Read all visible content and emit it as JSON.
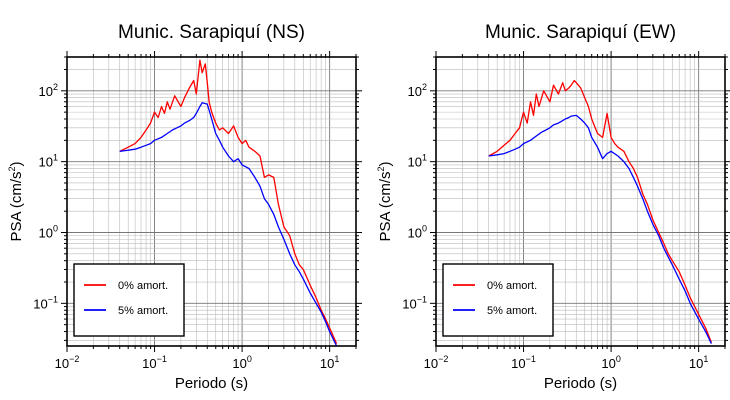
{
  "chart_data": [
    {
      "type": "line",
      "title": "Munic. Sarapiquí (NS)",
      "xlabel": "Periodo (s)",
      "ylabel_main": "PSA (cm/s",
      "ylabel_exp": "2",
      "ylabel_close": ")",
      "xscale": "log",
      "yscale": "log",
      "xlim": [
        0.01,
        20
      ],
      "ylim": [
        0.025,
        300
      ],
      "grid": true,
      "legend_position": "bottom-left",
      "series": [
        {
          "name": "0% amort.",
          "color": "#ff0000",
          "x": [
            0.04,
            0.05,
            0.06,
            0.07,
            0.08,
            0.09,
            0.1,
            0.11,
            0.12,
            0.13,
            0.14,
            0.15,
            0.17,
            0.2,
            0.22,
            0.25,
            0.28,
            0.3,
            0.33,
            0.35,
            0.38,
            0.4,
            0.42,
            0.45,
            0.5,
            0.55,
            0.6,
            0.7,
            0.8,
            0.9,
            1.0,
            1.1,
            1.2,
            1.4,
            1.6,
            1.8,
            2.0,
            2.3,
            2.6,
            3.0,
            3.5,
            4.0,
            4.5,
            5.0,
            6.0,
            7.0,
            8.0,
            9.0,
            10.0,
            12.0
          ],
          "y": [
            14,
            16,
            18,
            22,
            28,
            35,
            50,
            42,
            60,
            48,
            70,
            55,
            85,
            60,
            80,
            110,
            140,
            90,
            270,
            180,
            240,
            130,
            70,
            50,
            35,
            28,
            30,
            25,
            32,
            22,
            18,
            20,
            16,
            14,
            12,
            6,
            6.5,
            6,
            2.5,
            1.2,
            0.9,
            0.5,
            0.35,
            0.3,
            0.18,
            0.12,
            0.08,
            0.06,
            0.045,
            0.027
          ]
        },
        {
          "name": "5% amort.",
          "color": "#0000ff",
          "x": [
            0.04,
            0.05,
            0.06,
            0.07,
            0.08,
            0.09,
            0.1,
            0.12,
            0.14,
            0.16,
            0.18,
            0.2,
            0.22,
            0.25,
            0.28,
            0.3,
            0.33,
            0.35,
            0.4,
            0.45,
            0.5,
            0.55,
            0.6,
            0.7,
            0.8,
            0.9,
            1.0,
            1.2,
            1.4,
            1.6,
            1.8,
            2.0,
            2.3,
            2.6,
            3.0,
            3.5,
            4.0,
            4.5,
            5.0,
            6.0,
            7.0,
            8.0,
            9.0,
            10.0,
            12.0
          ],
          "y": [
            14,
            14.5,
            15,
            16,
            17,
            18,
            20,
            22,
            25,
            28,
            30,
            32,
            35,
            38,
            42,
            48,
            60,
            68,
            65,
            40,
            25,
            20,
            16,
            12,
            10,
            11,
            9,
            8,
            6,
            4.5,
            3,
            2.5,
            1.8,
            1.2,
            0.8,
            0.5,
            0.35,
            0.28,
            0.22,
            0.14,
            0.1,
            0.075,
            0.055,
            0.04,
            0.025
          ]
        }
      ]
    },
    {
      "type": "line",
      "title": "Munic. Sarapiquí (EW)",
      "xlabel": "Periodo (s)",
      "ylabel_main": "PSA (cm/s",
      "ylabel_exp": "2",
      "ylabel_close": ")",
      "xscale": "log",
      "yscale": "log",
      "xlim": [
        0.01,
        20
      ],
      "ylim": [
        0.025,
        300
      ],
      "grid": true,
      "legend_position": "bottom-left",
      "series": [
        {
          "name": "0% amort.",
          "color": "#ff0000",
          "x": [
            0.04,
            0.05,
            0.06,
            0.07,
            0.08,
            0.09,
            0.1,
            0.11,
            0.12,
            0.13,
            0.14,
            0.15,
            0.17,
            0.2,
            0.22,
            0.25,
            0.28,
            0.3,
            0.33,
            0.35,
            0.38,
            0.4,
            0.45,
            0.5,
            0.55,
            0.6,
            0.7,
            0.8,
            0.9,
            1.0,
            1.1,
            1.2,
            1.4,
            1.6,
            1.8,
            2.0,
            2.3,
            2.6,
            3.0,
            3.5,
            4.0,
            4.5,
            5.0,
            6.0,
            7.0,
            8.0,
            10.0,
            12.0,
            14.0
          ],
          "y": [
            12,
            14,
            17,
            20,
            25,
            30,
            50,
            35,
            70,
            45,
            90,
            60,
            100,
            70,
            120,
            90,
            130,
            100,
            110,
            120,
            140,
            130,
            110,
            80,
            60,
            40,
            25,
            22,
            48,
            22,
            18,
            16,
            14,
            10,
            8,
            6,
            3.5,
            2.5,
            1.5,
            1.0,
            0.7,
            0.5,
            0.4,
            0.28,
            0.18,
            0.12,
            0.07,
            0.045,
            0.028
          ]
        },
        {
          "name": "5% amort.",
          "color": "#0000ff",
          "x": [
            0.04,
            0.05,
            0.06,
            0.07,
            0.08,
            0.09,
            0.1,
            0.12,
            0.14,
            0.16,
            0.18,
            0.2,
            0.22,
            0.25,
            0.28,
            0.3,
            0.33,
            0.35,
            0.4,
            0.45,
            0.5,
            0.55,
            0.6,
            0.7,
            0.8,
            0.9,
            1.0,
            1.2,
            1.4,
            1.6,
            1.8,
            2.0,
            2.3,
            2.6,
            3.0,
            3.5,
            4.0,
            4.5,
            5.0,
            6.0,
            7.0,
            8.0,
            10.0,
            12.0,
            14.0
          ],
          "y": [
            12,
            12.5,
            13,
            14,
            15,
            16,
            18,
            20,
            23,
            26,
            28,
            30,
            33,
            35,
            38,
            40,
            42,
            44,
            45,
            40,
            35,
            30,
            22,
            16,
            11,
            13,
            14,
            12,
            10,
            8,
            6,
            4.5,
            3,
            2,
            1.3,
            0.9,
            0.6,
            0.45,
            0.35,
            0.22,
            0.15,
            0.1,
            0.06,
            0.04,
            0.027
          ]
        }
      ]
    }
  ]
}
